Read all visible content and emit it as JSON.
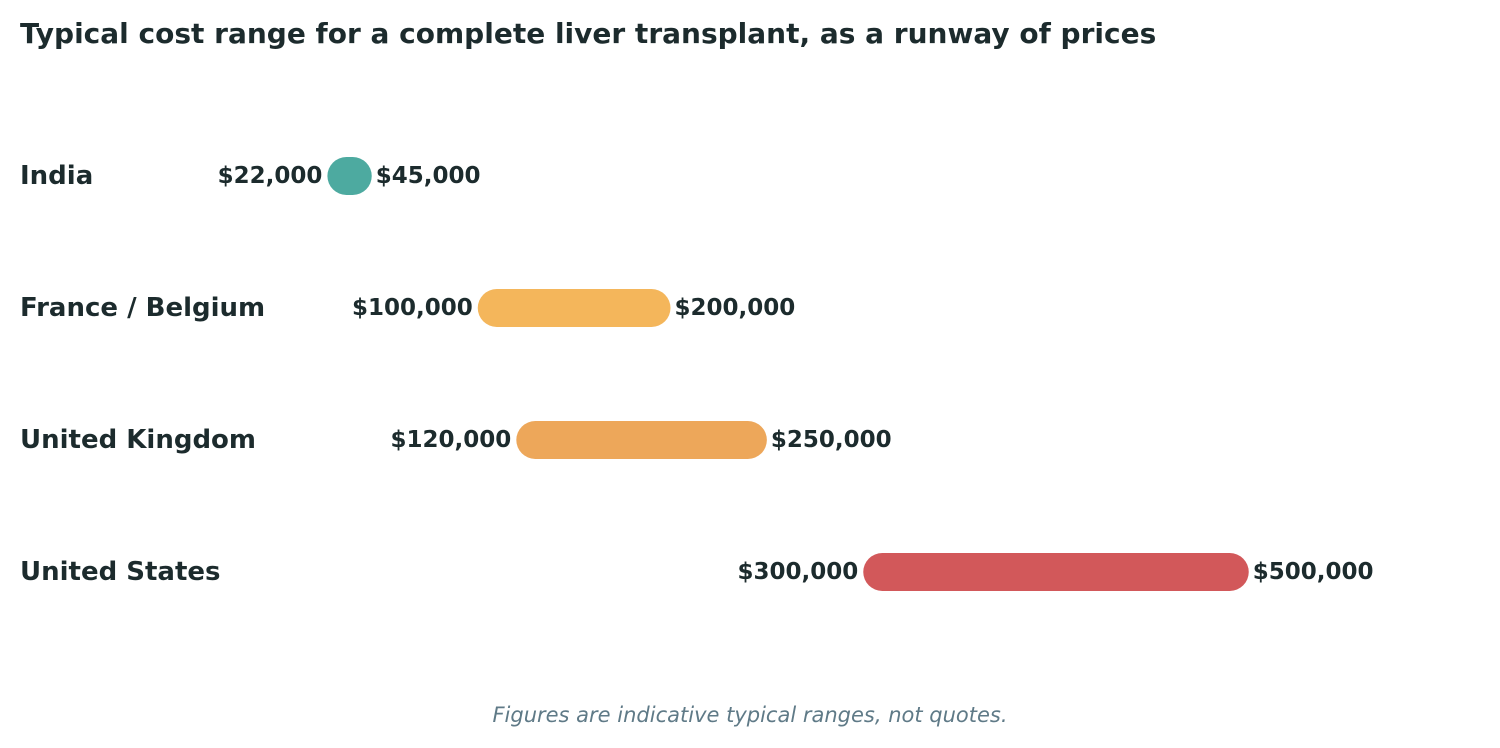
{
  "chart_data": {
    "type": "bar",
    "title": "Typical cost range for a complete liver transplant, as a runway of prices",
    "note": "Figures are indicative typical ranges, not quotes.",
    "xlim": [
      0,
      520000
    ],
    "grid": false,
    "ranges": [
      {
        "category": "India",
        "low": 22000,
        "high": 45000,
        "low_label": "$22,000",
        "high_label": "$45,000",
        "color": "#4daaa0"
      },
      {
        "category": "France / Belgium",
        "low": 100000,
        "high": 200000,
        "low_label": "$100,000",
        "high_label": "$200,000",
        "color": "#f4b65b"
      },
      {
        "category": "United Kingdom",
        "low": 120000,
        "high": 250000,
        "low_label": "$120,000",
        "high_label": "$250,000",
        "color": "#eda75a"
      },
      {
        "category": "United States",
        "low": 300000,
        "high": 500000,
        "low_label": "$300,000",
        "high_label": "$500,000",
        "color": "#d2585a"
      }
    ]
  }
}
